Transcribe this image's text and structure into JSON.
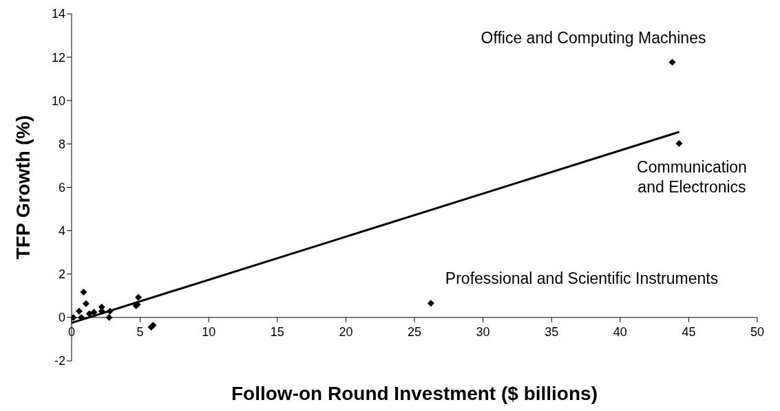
{
  "chart_data": {
    "type": "scatter",
    "xlabel": "Follow-on Round Investment ($ billions)",
    "ylabel": "TFP Growth (%)",
    "xlim": [
      0,
      50
    ],
    "xticks": [
      0,
      5,
      10,
      15,
      20,
      25,
      30,
      35,
      40,
      45,
      50
    ],
    "ylim": [
      -2,
      14
    ],
    "yticks": [
      -2,
      0,
      2,
      4,
      6,
      8,
      10,
      12,
      14
    ],
    "grid": false,
    "marker": "diamond",
    "series": [
      {
        "color": "#000000",
        "x": [
          0.13,
          0.88,
          1.05,
          0.55,
          0.71,
          1.3,
          1.63,
          2.2,
          2.2,
          2.8,
          2.74,
          4.87,
          4.7,
          4.8,
          5.95,
          5.8,
          26.2,
          43.8,
          44.3
        ],
        "values": [
          0.0,
          1.17,
          0.64,
          0.29,
          0.0,
          0.17,
          0.24,
          0.48,
          0.29,
          0.29,
          0.0,
          0.93,
          0.54,
          0.6,
          -0.36,
          -0.45,
          0.65,
          11.77,
          8.02
        ]
      },
      {
        "type": "line",
        "color": "#000000",
        "marker": "none",
        "x": [
          0,
          44.3
        ],
        "values": [
          -0.25,
          8.55
        ]
      }
    ],
    "annotations": [
      "Office and Computing Machines",
      "Communication\nand Electronics",
      "Professional and Scientific Instruments"
    ]
  }
}
